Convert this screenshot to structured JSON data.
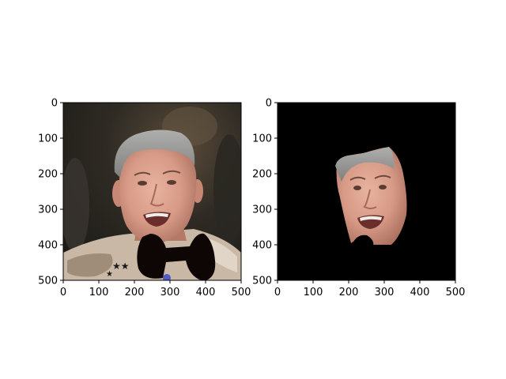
{
  "figure": {
    "panels": [
      {
        "id": "original",
        "content": "photo of a smiling grey-haired man in camouflage uniform; a black bow-tie shaped mask covers the chin and collar area",
        "x_ticks": [
          "0",
          "100",
          "200",
          "300",
          "400",
          "500"
        ],
        "y_ticks": [
          "0",
          "100",
          "200",
          "300",
          "400",
          "500"
        ]
      },
      {
        "id": "face-mask",
        "content": "same face cut out on a black background; chin region removed",
        "x_ticks": [
          "0",
          "100",
          "200",
          "300",
          "400",
          "500"
        ],
        "y_ticks": [
          "0",
          "100",
          "200",
          "300",
          "400",
          "500"
        ]
      }
    ],
    "colors": {
      "background": "#000000",
      "skin": "#d99b86",
      "hair": "#9a9a98",
      "uniform": "#c9b8a5"
    }
  }
}
